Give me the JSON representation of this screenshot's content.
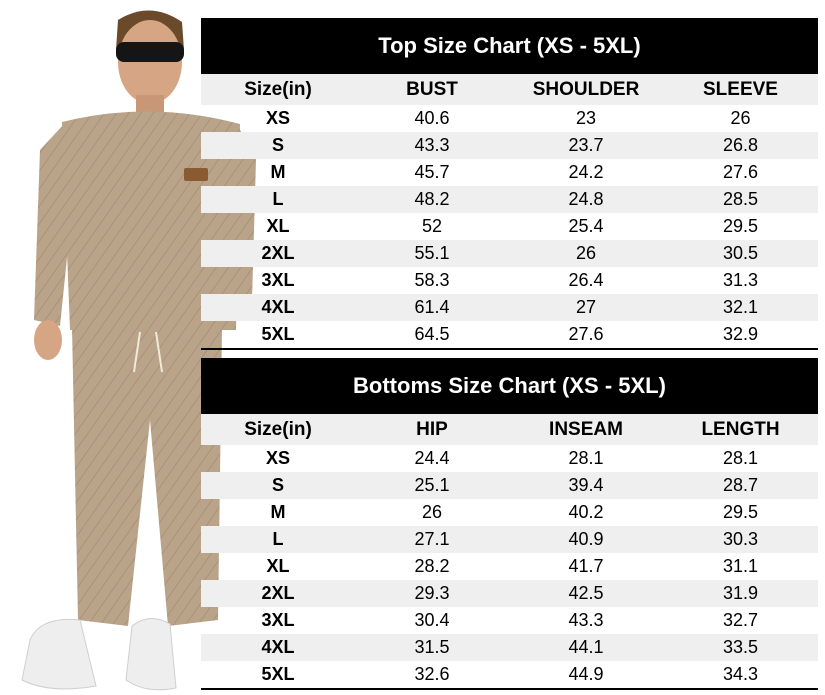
{
  "top_chart": {
    "title": "Top Size Chart (XS - 5XL)",
    "headers": [
      "Size(in)",
      "BUST",
      "SHOULDER",
      "SLEEVE"
    ],
    "rows": [
      [
        "XS",
        "40.6",
        "23",
        "26"
      ],
      [
        "S",
        "43.3",
        "23.7",
        "26.8"
      ],
      [
        "M",
        "45.7",
        "24.2",
        "27.6"
      ],
      [
        "L",
        "48.2",
        "24.8",
        "28.5"
      ],
      [
        "XL",
        "52",
        "25.4",
        "29.5"
      ],
      [
        "2XL",
        "55.1",
        "26",
        "30.5"
      ],
      [
        "3XL",
        "58.3",
        "26.4",
        "31.3"
      ],
      [
        "4XL",
        "61.4",
        "27",
        "32.1"
      ],
      [
        "5XL",
        "64.5",
        "27.6",
        "32.9"
      ]
    ]
  },
  "bottoms_chart": {
    "title": "Bottoms Size Chart (XS - 5XL)",
    "headers": [
      "Size(in)",
      "HIP",
      "INSEAM",
      "LENGTH"
    ],
    "rows": [
      [
        "XS",
        "24.4",
        "28.1",
        "28.1"
      ],
      [
        "S",
        "25.1",
        "39.4",
        "28.7"
      ],
      [
        "M",
        "26",
        "40.2",
        "29.5"
      ],
      [
        "L",
        "27.1",
        "40.9",
        "30.3"
      ],
      [
        "XL",
        "28.2",
        "41.7",
        "31.1"
      ],
      [
        "2XL",
        "29.3",
        "42.5",
        "31.9"
      ],
      [
        "3XL",
        "30.4",
        "43.3",
        "32.7"
      ],
      [
        "4XL",
        "31.5",
        "44.1",
        "33.5"
      ],
      [
        "5XL",
        "32.6",
        "44.9",
        "34.3"
      ]
    ]
  },
  "colors": {
    "header_bg": "#000000",
    "stripe": "#efefef",
    "garment": "#b9a489"
  },
  "image": {
    "subject": "model-in-tracksuit"
  }
}
